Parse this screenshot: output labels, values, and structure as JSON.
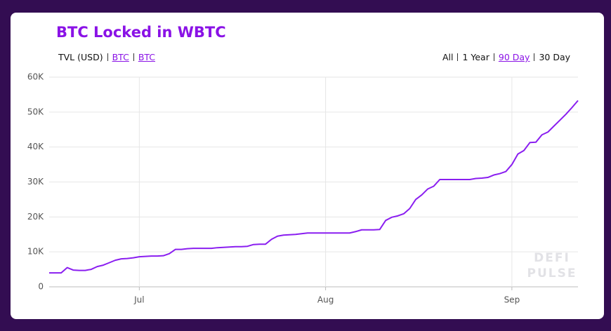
{
  "chart_data": {
    "type": "line",
    "title": "BTC Locked in WBTC",
    "metrics": [
      "TVL (USD)",
      "BTC",
      "BTC"
    ],
    "ranges": [
      "All",
      "1 Year",
      "90 Day",
      "30 Day"
    ],
    "watermark": [
      "DEFI",
      "PULSE"
    ],
    "color": "#8a1ef0",
    "categories": [
      null,
      null,
      null,
      null,
      null,
      null,
      null,
      null,
      null,
      null,
      null,
      null,
      null,
      null,
      null,
      "Jul",
      null,
      null,
      null,
      null,
      null,
      null,
      null,
      null,
      null,
      null,
      null,
      null,
      null,
      null,
      null,
      null,
      null,
      null,
      null,
      null,
      null,
      null,
      null,
      null,
      null,
      null,
      null,
      null,
      null,
      null,
      "Aug",
      null,
      null,
      null,
      null,
      null,
      null,
      null,
      null,
      null,
      null,
      null,
      null,
      null,
      null,
      null,
      null,
      null,
      null,
      null,
      null,
      null,
      null,
      null,
      null,
      null,
      null,
      null,
      null,
      null,
      null,
      "Sep",
      null,
      null,
      null,
      null,
      null,
      null,
      null,
      null,
      null,
      null,
      null
    ],
    "values": [
      4000,
      4000,
      4000,
      5500,
      4800,
      4700,
      4700,
      5000,
      5800,
      6200,
      6900,
      7600,
      8000,
      8100,
      8300,
      8600,
      8700,
      8800,
      8800,
      8900,
      9500,
      10700,
      10700,
      10900,
      11000,
      11000,
      11000,
      11000,
      11200,
      11300,
      11400,
      11500,
      11500,
      11600,
      12100,
      12200,
      12200,
      13600,
      14500,
      14800,
      14900,
      15000,
      15200,
      15400,
      15400,
      15400,
      15400,
      15400,
      15400,
      15400,
      15400,
      15800,
      16300,
      16300,
      16300,
      16400,
      19000,
      19900,
      20300,
      20900,
      22400,
      25000,
      26300,
      28000,
      28800,
      30700,
      30700,
      30700,
      30700,
      30700,
      30700,
      31000,
      31100,
      31300,
      32000,
      32400,
      33000,
      35000,
      38000,
      39000,
      41300,
      41400,
      43500,
      44300,
      46000,
      47700,
      49400,
      51300,
      53300
    ],
    "ylim": [
      0,
      60000
    ],
    "yticks": [
      0,
      {
        "value": 10000,
        "label": "10K"
      },
      {
        "value": 20000,
        "label": "20K"
      },
      {
        "value": 30000,
        "label": "30K"
      },
      {
        "value": 40000,
        "label": "40K"
      },
      {
        "value": 50000,
        "label": "50K"
      },
      {
        "value": 60000,
        "label": "60K"
      }
    ],
    "grid": true
  }
}
